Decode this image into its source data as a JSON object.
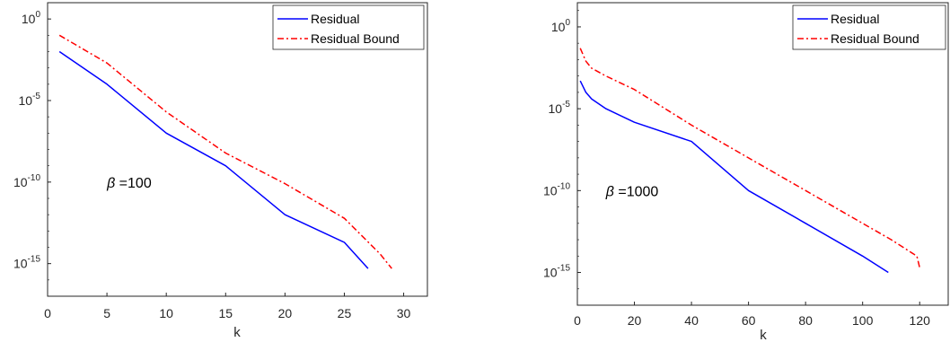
{
  "chart_data": [
    {
      "type": "line",
      "xlabel": "k",
      "ylabel": "",
      "xlim": [
        0,
        32
      ],
      "ylim": [
        1e-17,
        10
      ],
      "yscale": "log",
      "xticks": [
        0,
        5,
        10,
        15,
        20,
        25,
        30
      ],
      "yticks": [
        {
          "value": 1,
          "base": "10",
          "exp": "0"
        },
        {
          "value": 1e-05,
          "base": "10",
          "exp": "-5"
        },
        {
          "value": 1e-10,
          "base": "10",
          "exp": "-10"
        },
        {
          "value": 1e-15,
          "base": "10",
          "exp": "-15"
        }
      ],
      "grid": false,
      "legend_position": "top-right",
      "annotation": {
        "symbol": "β",
        "text": " =100",
        "x": 5,
        "y": 1e-10
      },
      "series": [
        {
          "name": "Residual",
          "color": "#0000ff",
          "style": "solid",
          "x": [
            1,
            5,
            10,
            15,
            20,
            25,
            27
          ],
          "y": [
            0.01,
            0.0001,
            1e-07,
            1e-09,
            1e-12,
            2e-14,
            5e-16
          ]
        },
        {
          "name": "Residual Bound",
          "color": "#ff0000",
          "style": "dashdot",
          "x": [
            1,
            5,
            10,
            15,
            20,
            25,
            28,
            29
          ],
          "y": [
            0.1,
            0.002,
            2e-06,
            6e-09,
            8e-11,
            6e-13,
            4e-15,
            5e-16
          ]
        }
      ]
    },
    {
      "type": "line",
      "xlabel": "k",
      "ylabel": "",
      "xlim": [
        0,
        130
      ],
      "ylim": [
        1e-17,
        30
      ],
      "yscale": "log",
      "xticks": [
        0,
        20,
        40,
        60,
        80,
        100,
        120
      ],
      "yticks": [
        {
          "value": 1,
          "base": "10",
          "exp": "0"
        },
        {
          "value": 1e-05,
          "base": "10",
          "exp": "-5"
        },
        {
          "value": 1e-10,
          "base": "10",
          "exp": "-10"
        },
        {
          "value": 1e-15,
          "base": "10",
          "exp": "-15"
        }
      ],
      "grid": false,
      "legend_position": "top-right",
      "annotation": {
        "symbol": "β",
        "text": " =1000",
        "x": 10,
        "y": 1e-10
      },
      "series": [
        {
          "name": "Residual",
          "color": "#0000ff",
          "style": "solid",
          "x": [
            1,
            3,
            5,
            10,
            20,
            40,
            60,
            80,
            100,
            109
          ],
          "y": [
            0.0005,
            0.0001,
            4e-05,
            1e-05,
            1.5e-06,
            1e-07,
            1e-10,
            1e-12,
            1e-14,
            1e-15
          ]
        },
        {
          "name": "Residual Bound",
          "color": "#ff0000",
          "style": "dashdot",
          "x": [
            1,
            3,
            5,
            10,
            20,
            40,
            60,
            80,
            100,
            110,
            119,
            120
          ],
          "y": [
            0.05,
            0.008,
            0.003,
            0.001,
            0.00015,
            1e-06,
            1e-08,
            1e-10,
            1e-12,
            1e-13,
            1e-14,
            2e-15
          ]
        }
      ]
    }
  ]
}
